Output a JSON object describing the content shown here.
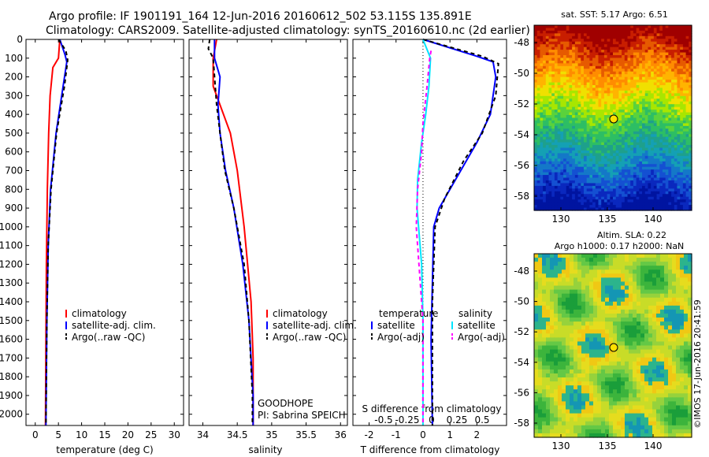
{
  "header": {
    "line1": "Argo profile: IF 1901191_164 12-Jun-2016 20160612_502 53.115S 135.891E",
    "line2": "Climatology: CARS2009. Satellite-adjusted climatology: synTS_20160610.nc (2d earlier)"
  },
  "colors": {
    "climatology": "#ff0000",
    "satellite": "#0000ff",
    "argo": "#000000",
    "satellite_s": "#00e5ff",
    "argo_s": "#ff00ff"
  },
  "panels": {
    "temperature": {
      "xlabel": "temperature (deg C)",
      "xticks": [
        "0",
        "5",
        "10",
        "15",
        "20",
        "25",
        "30"
      ],
      "legend": [
        "climatology",
        "satellite-adj. clim.",
        "Argo(..raw -QC)"
      ]
    },
    "salinity": {
      "xlabel": "salinity",
      "xticks": [
        "34",
        "34.5",
        "35",
        "35.5",
        "36"
      ],
      "legend": [
        "climatology",
        "satellite-adj. clim.",
        "Argo(..raw -QC)"
      ],
      "note1": "GOODHOPE",
      "note2": "PI: Sabrina SPEICH"
    },
    "difference": {
      "xlabel": "T difference from climatology",
      "xticks": [
        "-2",
        "-1",
        "0",
        "1",
        "2"
      ],
      "top_label": "S difference from climatology",
      "top_ticks": [
        "-0.5",
        "-0.25",
        "0",
        "0.25",
        "0.5"
      ],
      "legend_t_title": "temperature",
      "legend_s_title": "salinity",
      "legend_t": [
        "satellite",
        "Argo(-adj)"
      ],
      "legend_s": [
        "satellite",
        "Argo(-adj)"
      ]
    },
    "depth_ticks": [
      "0",
      "100",
      "200",
      "300",
      "400",
      "500",
      "600",
      "700",
      "800",
      "900",
      "1000",
      "1100",
      "1200",
      "1300",
      "1400",
      "1500",
      "1600",
      "1700",
      "1800",
      "1900",
      "2000"
    ]
  },
  "map_sst": {
    "title": "sat. SST: 5.17  Argo: 6.51",
    "lon_ticks": [
      "130",
      "135",
      "140"
    ],
    "lat_ticks": [
      "-48",
      "-50",
      "-52",
      "-54",
      "-56",
      "-58"
    ]
  },
  "map_sla": {
    "title1": "Altim. SLA: 0.22",
    "title2": "Argo h1000: 0.17 h2000: NaN",
    "lon_ticks": [
      "130",
      "135",
      "140"
    ],
    "lat_ticks": [
      "-48",
      "-50",
      "-52",
      "-54",
      "-56",
      "-58"
    ]
  },
  "watermark": "©IMOS 17-Jun-2016 20:41:59",
  "chart_data": [
    {
      "type": "line",
      "title": "",
      "xlabel": "temperature (deg C)",
      "ylabel": "",
      "xlim": [
        -2,
        32
      ],
      "ylim": [
        2060,
        0
      ],
      "series": [
        {
          "name": "climatology",
          "color": "#ff0000",
          "dash": "",
          "points": [
            [
              5.3,
              0
            ],
            [
              5.0,
              100
            ],
            [
              3.8,
              150
            ],
            [
              3.2,
              300
            ],
            [
              2.9,
              500
            ],
            [
              2.6,
              800
            ],
            [
              2.4,
              1200
            ],
            [
              2.3,
              1600
            ],
            [
              2.2,
              2060
            ]
          ]
        },
        {
          "name": "satellite-adj. clim.",
          "color": "#0000ff",
          "dash": "",
          "points": [
            [
              5.3,
              0
            ],
            [
              6.4,
              80
            ],
            [
              6.8,
              120
            ],
            [
              6.0,
              250
            ],
            [
              4.5,
              500
            ],
            [
              3.3,
              800
            ],
            [
              2.8,
              1100
            ],
            [
              2.5,
              1500
            ],
            [
              2.3,
              2060
            ]
          ]
        },
        {
          "name": "Argo(..raw -QC)",
          "color": "#000000",
          "dash": "5,4",
          "points": [
            [
              5.0,
              0
            ],
            [
              6.6,
              60
            ],
            [
              7.0,
              110
            ],
            [
              6.3,
              250
            ],
            [
              4.6,
              500
            ],
            [
              3.4,
              800
            ],
            [
              2.8,
              1100
            ],
            [
              2.5,
              1500
            ],
            [
              2.3,
              2060
            ]
          ]
        }
      ]
    },
    {
      "type": "line",
      "title": "",
      "xlabel": "salinity",
      "ylabel": "",
      "xlim": [
        33.8,
        36.1
      ],
      "ylim": [
        2060,
        0
      ],
      "series": [
        {
          "name": "climatology",
          "color": "#ff0000",
          "dash": "",
          "points": [
            [
              34.2,
              0
            ],
            [
              34.15,
              100
            ],
            [
              34.15,
              250
            ],
            [
              34.3,
              400
            ],
            [
              34.4,
              500
            ],
            [
              34.5,
              700
            ],
            [
              34.6,
              1000
            ],
            [
              34.7,
              1400
            ],
            [
              34.73,
              1700
            ],
            [
              34.73,
              2060
            ]
          ]
        },
        {
          "name": "satellite-adj. clim.",
          "color": "#0000ff",
          "dash": "",
          "points": [
            [
              34.17,
              0
            ],
            [
              34.17,
              100
            ],
            [
              34.25,
              200
            ],
            [
              34.22,
              350
            ],
            [
              34.25,
              500
            ],
            [
              34.33,
              700
            ],
            [
              34.45,
              900
            ],
            [
              34.58,
              1200
            ],
            [
              34.67,
              1500
            ],
            [
              34.73,
              1900
            ],
            [
              34.73,
              2060
            ]
          ]
        },
        {
          "name": "Argo(..raw -QC)",
          "color": "#000000",
          "dash": "5,4",
          "points": [
            [
              34.1,
              0
            ],
            [
              34.08,
              50
            ],
            [
              34.15,
              100
            ],
            [
              34.2,
              350
            ],
            [
              34.25,
              500
            ],
            [
              34.32,
              700
            ],
            [
              34.45,
              900
            ],
            [
              34.6,
              1200
            ],
            [
              34.67,
              1500
            ],
            [
              34.72,
              1900
            ],
            [
              34.72,
              2060
            ]
          ]
        }
      ]
    },
    {
      "type": "line",
      "title": "",
      "xlabel": "T difference from climatology",
      "ylabel": "",
      "xlim": [
        -2.6,
        3.1
      ],
      "ylim": [
        2060,
        0
      ],
      "series": [
        {
          "name": "temperature satellite",
          "color": "#0000ff",
          "dash": "",
          "points": [
            [
              0,
              0
            ],
            [
              2.0,
              90
            ],
            [
              2.6,
              120
            ],
            [
              2.7,
              200
            ],
            [
              2.5,
              400
            ],
            [
              2.0,
              550
            ],
            [
              1.2,
              750
            ],
            [
              0.6,
              900
            ],
            [
              0.4,
              1000
            ],
            [
              0.35,
              1300
            ],
            [
              0.3,
              1600
            ],
            [
              0.35,
              2060
            ]
          ]
        },
        {
          "name": "temperature Argo(-adj)",
          "color": "#000000",
          "dash": "5,4",
          "points": [
            [
              0,
              0
            ],
            [
              2.2,
              90
            ],
            [
              2.8,
              130
            ],
            [
              2.7,
              300
            ],
            [
              2.2,
              500
            ],
            [
              1.5,
              650
            ],
            [
              0.8,
              850
            ],
            [
              0.45,
              1000
            ],
            [
              0.35,
              1400
            ],
            [
              0.35,
              2060
            ]
          ]
        },
        {
          "name": "salinity satellite",
          "color": "#00e5ff",
          "dash": "",
          "points": [
            [
              0,
              0
            ],
            [
              0.28,
              100
            ],
            [
              0.22,
              250
            ],
            [
              0.1,
              400
            ],
            [
              -0.05,
              550
            ],
            [
              -0.2,
              750
            ],
            [
              -0.22,
              900
            ],
            [
              -0.05,
              1200
            ],
            [
              0,
              1500
            ],
            [
              0,
              2060
            ]
          ]
        },
        {
          "name": "salinity Argo(-adj)",
          "color": "#ff00ff",
          "dash": "5,4",
          "points": [
            [
              0.3,
              60
            ],
            [
              0.25,
              100
            ],
            [
              0.15,
              250
            ],
            [
              0,
              450
            ],
            [
              -0.05,
              600
            ],
            [
              -0.2,
              800
            ],
            [
              -0.25,
              1000
            ],
            [
              -0.15,
              1200
            ],
            [
              0,
              1500
            ],
            [
              0,
              2060
            ]
          ]
        }
      ]
    }
  ]
}
